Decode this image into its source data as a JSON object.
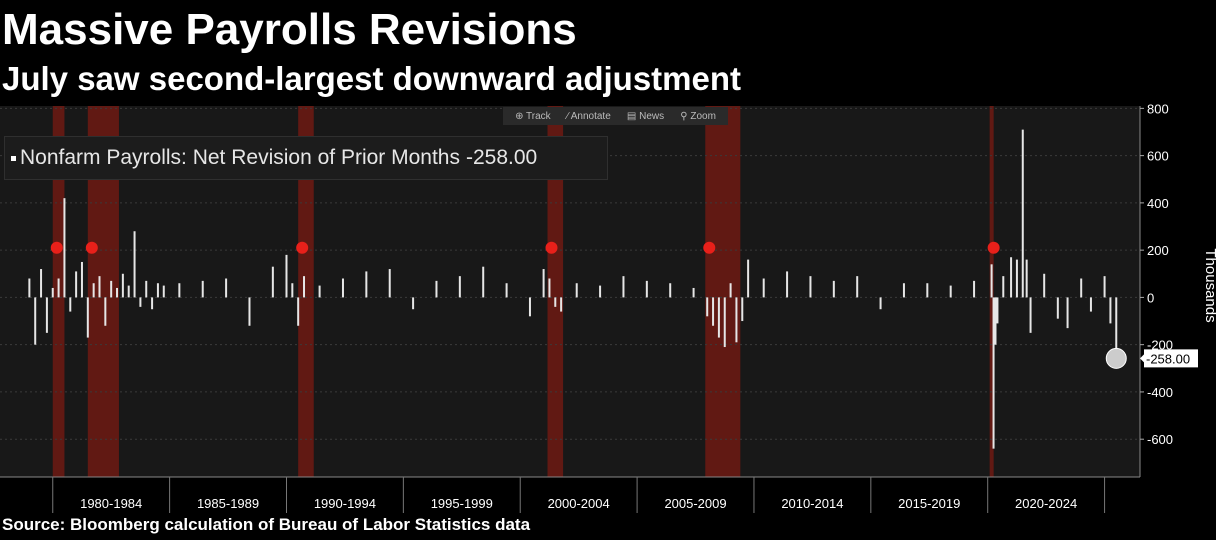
{
  "header": {
    "title": "Massive Payrolls Revisions",
    "subtitle": "July saw second-largest downward adjustment"
  },
  "toolbar": {
    "track": "Track",
    "annotate": "Annotate",
    "news": "News",
    "zoom": "Zoom"
  },
  "legend": {
    "series_name": "Nonfarm Payrolls: Net Revision of Prior Months",
    "last_value": "-258.00"
  },
  "source": "Source: Bloomberg calculation of Bureau of Labor Statistics data",
  "colors": {
    "background": "#000000",
    "plot_background": "#181818",
    "bars": "#e6e6e6",
    "recession_shade": "#7a1a12",
    "event_marker": "#e8201a",
    "last_value_marker": "#cccccc"
  },
  "chart_data": {
    "type": "bar",
    "series": [
      {
        "name": "Nonfarm Payrolls: Net Revision of Prior Months",
        "x": [
          "1979-01",
          "1979-04",
          "1979-07",
          "1979-10",
          "1980-01",
          "1980-04",
          "1980-07",
          "1980-10",
          "1981-01",
          "1981-04",
          "1981-07",
          "1981-10",
          "1982-01",
          "1982-04",
          "1982-07",
          "1982-10",
          "1983-01",
          "1983-04",
          "1983-07",
          "1983-10",
          "1984-01",
          "1984-04",
          "1984-07",
          "1984-10",
          "1985-06",
          "1986-06",
          "1987-06",
          "1988-06",
          "1989-06",
          "1990-01",
          "1990-04",
          "1990-07",
          "1990-10",
          "1991-06",
          "1992-06",
          "1993-06",
          "1994-06",
          "1995-06",
          "1996-06",
          "1997-06",
          "1998-06",
          "1999-06",
          "2000-06",
          "2001-01",
          "2001-04",
          "2001-07",
          "2001-10",
          "2002-06",
          "2003-06",
          "2004-06",
          "2005-06",
          "2006-06",
          "2007-06",
          "2008-01",
          "2008-04",
          "2008-07",
          "2008-10",
          "2009-01",
          "2009-04",
          "2009-07",
          "2009-10",
          "2010-06",
          "2011-06",
          "2012-06",
          "2013-06",
          "2014-06",
          "2015-06",
          "2016-06",
          "2017-06",
          "2018-06",
          "2019-06",
          "2020-03",
          "2020-04",
          "2020-05",
          "2020-06",
          "2020-09",
          "2021-01",
          "2021-04",
          "2021-07",
          "2021-09",
          "2021-11",
          "2022-06",
          "2023-01",
          "2023-06",
          "2024-01",
          "2024-06",
          "2025-01",
          "2025-04",
          "2025-07"
        ],
        "values": [
          80,
          -200,
          120,
          -150,
          40,
          80,
          420,
          -60,
          110,
          150,
          -170,
          60,
          90,
          -120,
          70,
          40,
          100,
          50,
          280,
          -40,
          70,
          -50,
          60,
          50,
          60,
          70,
          80,
          -120,
          130,
          180,
          60,
          -120,
          90,
          50,
          80,
          110,
          120,
          -50,
          70,
          90,
          130,
          60,
          -80,
          120,
          80,
          -40,
          -60,
          60,
          50,
          90,
          70,
          60,
          40,
          -80,
          -120,
          -170,
          -210,
          60,
          -190,
          -100,
          160,
          80,
          110,
          90,
          70,
          90,
          -50,
          60,
          60,
          50,
          70,
          140,
          -640,
          -200,
          -110,
          90,
          170,
          160,
          710,
          160,
          -150,
          100,
          -90,
          -130,
          80,
          -60,
          90,
          -110,
          -258
        ]
      }
    ],
    "ylabel": "Thousands",
    "ylim": [
      -760,
      810
    ],
    "yticks": [
      800,
      600,
      400,
      200,
      0,
      -200,
      -400,
      -600
    ],
    "x_range": [
      "1978-01",
      "2025-12"
    ],
    "x_periods": [
      "1980-1984",
      "1985-1989",
      "1990-1994",
      "1995-1999",
      "2000-2004",
      "2005-2009",
      "2010-2014",
      "2015-2019",
      "2020-2024"
    ],
    "recessions": [
      [
        "1980-01",
        "1980-07"
      ],
      [
        "1981-07",
        "1982-11"
      ],
      [
        "1990-07",
        "1991-03"
      ],
      [
        "2001-03",
        "2001-11"
      ],
      [
        "2007-12",
        "2009-06"
      ],
      [
        "2020-02",
        "2020-04"
      ]
    ],
    "last_value": -258,
    "last_value_label": "-258.00",
    "grid": true,
    "legend_position": "top-left"
  }
}
